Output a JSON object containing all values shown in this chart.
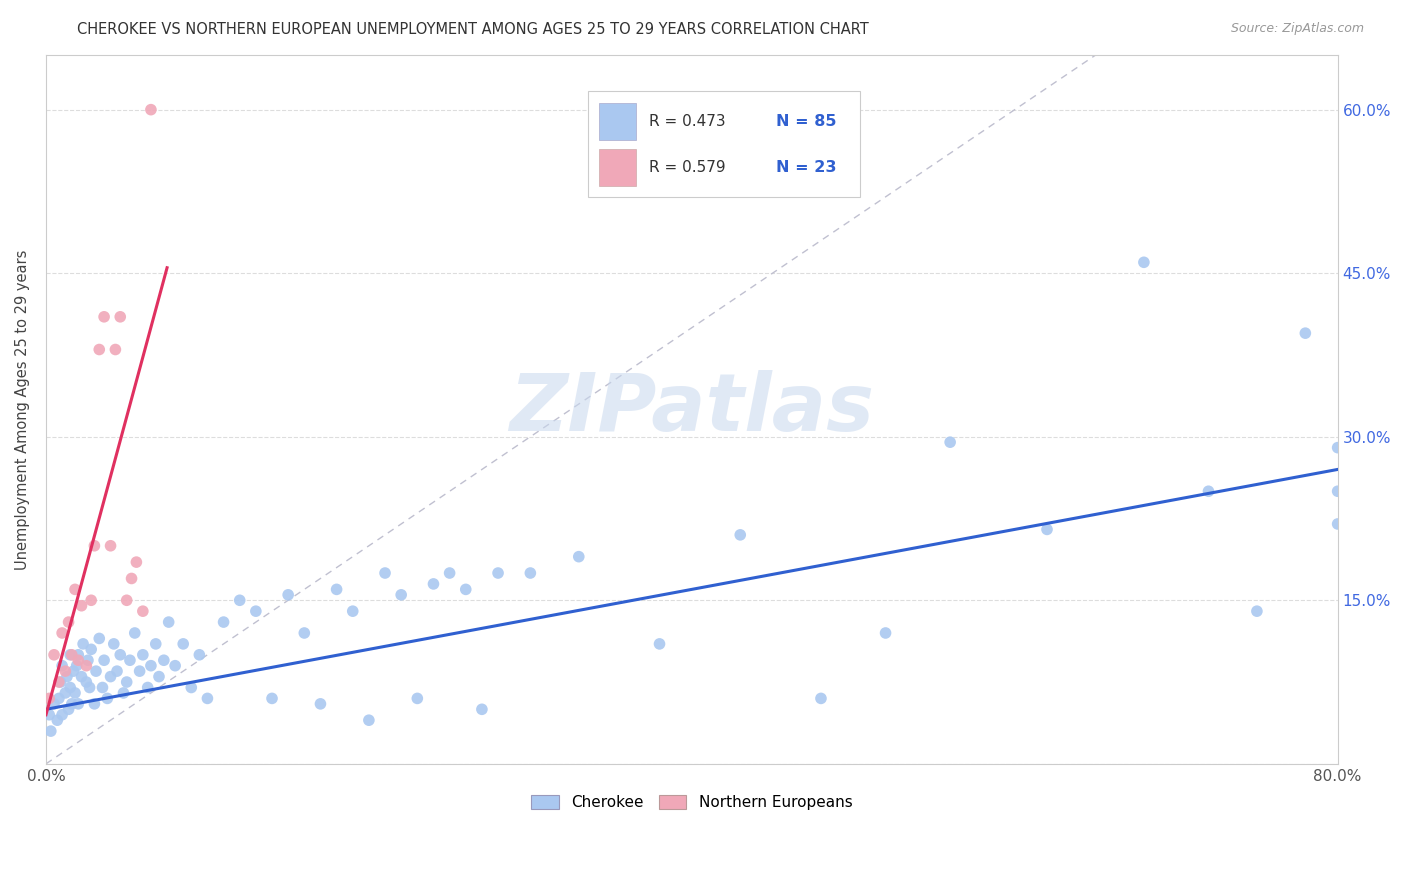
{
  "title": "CHEROKEE VS NORTHERN EUROPEAN UNEMPLOYMENT AMONG AGES 25 TO 29 YEARS CORRELATION CHART",
  "source": "Source: ZipAtlas.com",
  "ylabel": "Unemployment Among Ages 25 to 29 years",
  "xlim": [
    0.0,
    0.8
  ],
  "ylim": [
    0.0,
    0.65
  ],
  "cherokee_color": "#aac8f0",
  "ne_color": "#f0a8b8",
  "cherokee_line_color": "#3060d0",
  "ne_line_color": "#e03060",
  "diagonal_color": "#c0c0d0",
  "watermark": "ZIPatlas",
  "watermark_color": "#c8d8ee",
  "legend_R_cherokee": "R = 0.473",
  "legend_N_cherokee": "N = 85",
  "legend_R_ne": "R = 0.579",
  "legend_N_ne": "N = 23",
  "cherokee_x": [
    0.002,
    0.003,
    0.005,
    0.007,
    0.008,
    0.009,
    0.01,
    0.01,
    0.012,
    0.013,
    0.014,
    0.015,
    0.015,
    0.016,
    0.017,
    0.018,
    0.019,
    0.02,
    0.02,
    0.022,
    0.023,
    0.025,
    0.026,
    0.027,
    0.028,
    0.03,
    0.031,
    0.033,
    0.035,
    0.036,
    0.038,
    0.04,
    0.042,
    0.044,
    0.046,
    0.048,
    0.05,
    0.052,
    0.055,
    0.058,
    0.06,
    0.063,
    0.065,
    0.068,
    0.07,
    0.073,
    0.076,
    0.08,
    0.085,
    0.09,
    0.095,
    0.1,
    0.11,
    0.12,
    0.13,
    0.14,
    0.15,
    0.16,
    0.17,
    0.18,
    0.19,
    0.2,
    0.21,
    0.22,
    0.23,
    0.24,
    0.25,
    0.26,
    0.27,
    0.28,
    0.3,
    0.33,
    0.38,
    0.43,
    0.48,
    0.52,
    0.56,
    0.62,
    0.68,
    0.72,
    0.75,
    0.78,
    0.8,
    0.8,
    0.8
  ],
  "cherokee_y": [
    0.045,
    0.03,
    0.055,
    0.04,
    0.06,
    0.075,
    0.045,
    0.09,
    0.065,
    0.08,
    0.05,
    0.07,
    0.1,
    0.055,
    0.085,
    0.065,
    0.09,
    0.055,
    0.1,
    0.08,
    0.11,
    0.075,
    0.095,
    0.07,
    0.105,
    0.055,
    0.085,
    0.115,
    0.07,
    0.095,
    0.06,
    0.08,
    0.11,
    0.085,
    0.1,
    0.065,
    0.075,
    0.095,
    0.12,
    0.085,
    0.1,
    0.07,
    0.09,
    0.11,
    0.08,
    0.095,
    0.13,
    0.09,
    0.11,
    0.07,
    0.1,
    0.06,
    0.13,
    0.15,
    0.14,
    0.06,
    0.155,
    0.12,
    0.055,
    0.16,
    0.14,
    0.04,
    0.175,
    0.155,
    0.06,
    0.165,
    0.175,
    0.16,
    0.05,
    0.175,
    0.175,
    0.19,
    0.11,
    0.21,
    0.06,
    0.12,
    0.295,
    0.215,
    0.46,
    0.25,
    0.14,
    0.395,
    0.29,
    0.25,
    0.22
  ],
  "ne_x": [
    0.002,
    0.005,
    0.008,
    0.01,
    0.012,
    0.014,
    0.016,
    0.018,
    0.02,
    0.022,
    0.025,
    0.028,
    0.03,
    0.033,
    0.036,
    0.04,
    0.043,
    0.046,
    0.05,
    0.053,
    0.056,
    0.06,
    0.065
  ],
  "ne_y": [
    0.06,
    0.1,
    0.075,
    0.12,
    0.085,
    0.13,
    0.1,
    0.16,
    0.095,
    0.145,
    0.09,
    0.15,
    0.2,
    0.38,
    0.41,
    0.2,
    0.38,
    0.41,
    0.15,
    0.17,
    0.185,
    0.14,
    0.6
  ],
  "ne_line_x0": 0.0,
  "ne_line_x1": 0.075,
  "ne_line_y0": 0.045,
  "ne_line_y1": 0.455,
  "ch_line_x0": 0.0,
  "ch_line_x1": 0.8,
  "ch_line_y0": 0.05,
  "ch_line_y1": 0.27
}
